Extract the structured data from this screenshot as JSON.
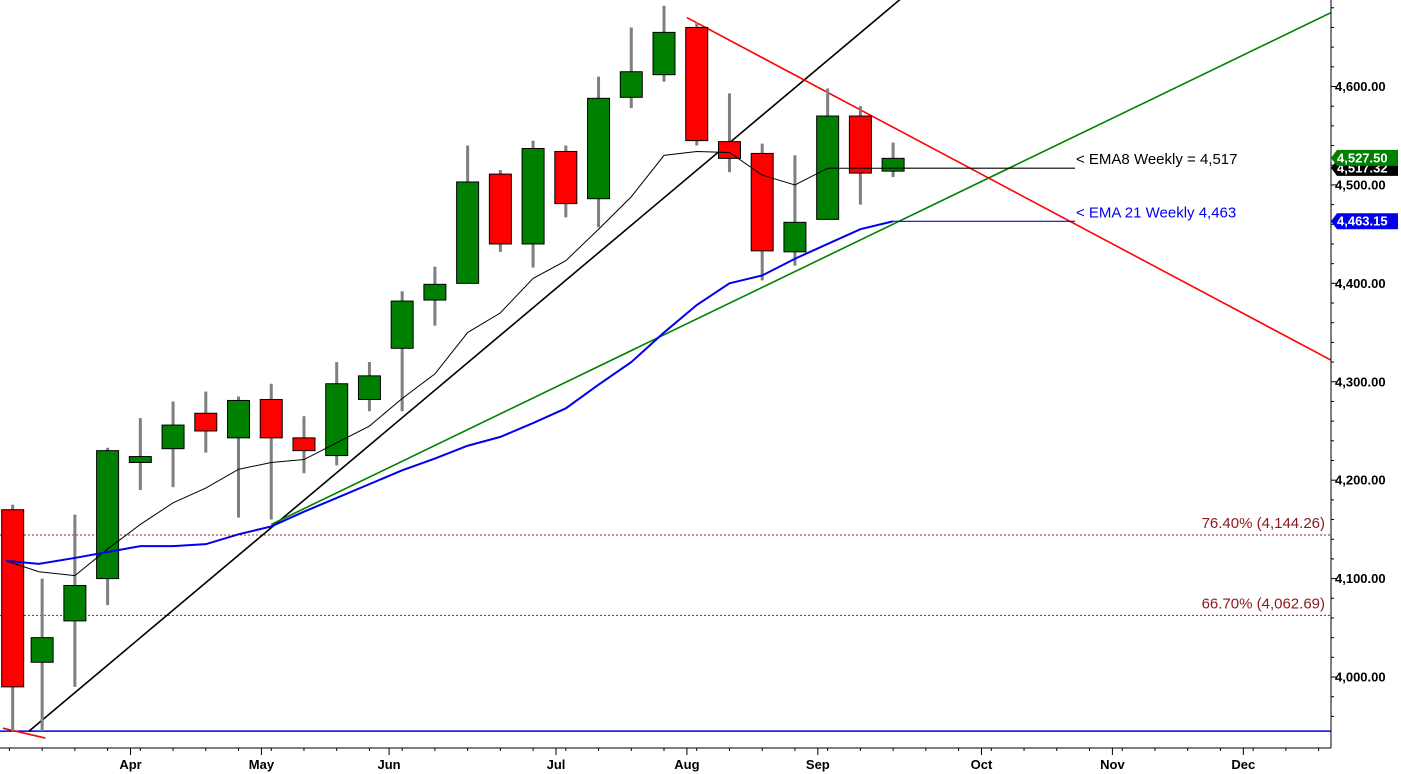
{
  "chart_data": {
    "type": "candlestick",
    "timeframe": "weekly",
    "ylim": [
      3940,
      4690
    ],
    "y_ticks": [
      4000,
      4100,
      4200,
      4300,
      4400,
      4500,
      4600
    ],
    "y_tick_labels": [
      "4,000.00",
      "4,100.00",
      "4,200.00",
      "4,300.00",
      "4,400.00",
      "4,500.00",
      "4,600.00"
    ],
    "x_month_labels": [
      {
        "label": "Apr",
        "week": 3.3
      },
      {
        "label": "May",
        "week": 7.3
      },
      {
        "label": "Jun",
        "week": 11.2
      },
      {
        "label": "Jul",
        "week": 16.3
      },
      {
        "label": "Aug",
        "week": 20.3
      },
      {
        "label": "Sep",
        "week": 24.3
      },
      {
        "label": "Oct",
        "week": 29.3
      },
      {
        "label": "Nov",
        "week": 33.3
      },
      {
        "label": "Dec",
        "week": 37.3
      }
    ],
    "candles": [
      {
        "w": -0.3,
        "o": 4170,
        "h": 4175,
        "l": 3945,
        "c": 3990
      },
      {
        "w": 0.6,
        "o": 4015,
        "h": 4100,
        "l": 3945,
        "c": 4040
      },
      {
        "w": 1.6,
        "o": 4057,
        "h": 4165,
        "l": 3990,
        "c": 4093
      },
      {
        "w": 2.6,
        "o": 4100,
        "h": 4233,
        "l": 4073,
        "c": 4230
      },
      {
        "w": 3.6,
        "o": 4218,
        "h": 4263,
        "l": 4190,
        "c": 4224
      },
      {
        "w": 4.6,
        "o": 4232,
        "h": 4280,
        "l": 4193,
        "c": 4256
      },
      {
        "w": 5.6,
        "o": 4268,
        "h": 4290,
        "l": 4228,
        "c": 4250
      },
      {
        "w": 6.6,
        "o": 4243,
        "h": 4285,
        "l": 4162,
        "c": 4281
      },
      {
        "w": 7.6,
        "o": 4282,
        "h": 4298,
        "l": 4160,
        "c": 4243
      },
      {
        "w": 8.6,
        "o": 4243,
        "h": 4265,
        "l": 4207,
        "c": 4230
      },
      {
        "w": 9.6,
        "o": 4225,
        "h": 4320,
        "l": 4215,
        "c": 4298
      },
      {
        "w": 10.6,
        "o": 4282,
        "h": 4320,
        "l": 4270,
        "c": 4306
      },
      {
        "w": 11.6,
        "o": 4334,
        "h": 4392,
        "l": 4270,
        "c": 4382
      },
      {
        "w": 12.6,
        "o": 4383,
        "h": 4417,
        "l": 4357,
        "c": 4399
      },
      {
        "w": 13.6,
        "o": 4400,
        "h": 4540,
        "l": 4400,
        "c": 4503
      },
      {
        "w": 14.6,
        "o": 4511,
        "h": 4515,
        "l": 4432,
        "c": 4440
      },
      {
        "w": 15.6,
        "o": 4440,
        "h": 4545,
        "l": 4416,
        "c": 4537
      },
      {
        "w": 16.6,
        "o": 4534,
        "h": 4540,
        "l": 4467,
        "c": 4481
      },
      {
        "w": 17.6,
        "o": 4486,
        "h": 4610,
        "l": 4457,
        "c": 4588
      },
      {
        "w": 18.6,
        "o": 4589,
        "h": 4660,
        "l": 4578,
        "c": 4615
      },
      {
        "w": 19.6,
        "o": 4612,
        "h": 4682,
        "l": 4605,
        "c": 4655
      },
      {
        "w": 20.6,
        "o": 4660,
        "h": 4665,
        "l": 4540,
        "c": 4545
      },
      {
        "w": 21.6,
        "o": 4544,
        "h": 4593,
        "l": 4513,
        "c": 4527
      },
      {
        "w": 22.6,
        "o": 4532,
        "h": 4542,
        "l": 4403,
        "c": 4433
      },
      {
        "w": 23.6,
        "o": 4432,
        "h": 4530,
        "l": 4418,
        "c": 4462
      },
      {
        "w": 24.6,
        "o": 4465,
        "h": 4598,
        "l": 4465,
        "c": 4570
      },
      {
        "w": 25.6,
        "o": 4570,
        "h": 4580,
        "l": 4480,
        "c": 4512
      },
      {
        "w": 26.6,
        "o": 4514,
        "h": 4543,
        "l": 4508,
        "c": 4527
      }
    ],
    "ema8": {
      "label": "< EMA8 Weekly = 4,517",
      "current_value": "4,517.32",
      "color": "#000000",
      "weeks": [
        -0.5,
        0.5,
        1.6,
        2.6,
        3.6,
        4.6,
        5.6,
        6.6,
        7.6,
        8.6,
        9.6,
        10.6,
        11.6,
        12.6,
        13.6,
        14.6,
        15.6,
        16.6,
        17.6,
        18.6,
        19.6,
        20.6,
        21.6,
        22.6,
        23.6,
        24.6,
        25.6,
        26.6
      ],
      "values": [
        4118,
        4107,
        4103,
        4130,
        4155,
        4177,
        4192,
        4211,
        4218,
        4221,
        4238,
        4255,
        4283,
        4308,
        4350,
        4370,
        4405,
        4423,
        4455,
        4488,
        4530,
        4534,
        4533,
        4510,
        4500,
        4517,
        4517,
        4517
      ]
    },
    "ema21": {
      "label": "< EMA 21 Weekly 4,463",
      "current_value": "4,463.15",
      "color": "#0000ee",
      "weeks": [
        -0.5,
        0.5,
        1.6,
        2.6,
        3.6,
        4.6,
        5.6,
        6.6,
        7.6,
        8.6,
        9.6,
        10.6,
        11.6,
        12.6,
        13.6,
        14.6,
        15.6,
        16.6,
        17.6,
        18.6,
        19.6,
        20.6,
        21.6,
        22.6,
        23.6,
        24.6,
        25.6,
        26.6
      ],
      "values": [
        4118,
        4115,
        4121,
        4127,
        4133,
        4133,
        4135,
        4145,
        4153,
        4168,
        4182,
        4196,
        4210,
        4222,
        4235,
        4244,
        4258,
        4273,
        4297,
        4320,
        4350,
        4378,
        4400,
        4408,
        4425,
        4440,
        4455,
        4463
      ]
    },
    "last_price": "4,527.50",
    "fibonacci_levels": [
      {
        "label": "76.40% (4,144.26)",
        "value": 4144.26
      },
      {
        "label": "66.70% (4,062.69)",
        "value": 4062.69
      }
    ],
    "horizontal_line": {
      "value": 3945,
      "color": "#0000ee"
    },
    "trendlines": [
      {
        "color": "#000000",
        "p1": {
          "w": 0.2,
          "v": 3945
        },
        "p2": {
          "w": 28.3,
          "v": 4730
        }
      },
      {
        "color": "#008000",
        "p1": {
          "w": 7.6,
          "v": 4155
        },
        "p2": {
          "w": 40.6,
          "v": 4685
        }
      },
      {
        "color": "#ff0000",
        "p1": {
          "w": 20.3,
          "v": 4670
        },
        "p2": {
          "w": 40.6,
          "v": 4311
        }
      },
      {
        "color": "#ff0000",
        "p1": {
          "w": -0.6,
          "v": 3948
        },
        "p2": {
          "w": 0.7,
          "v": 3938
        }
      }
    ]
  }
}
